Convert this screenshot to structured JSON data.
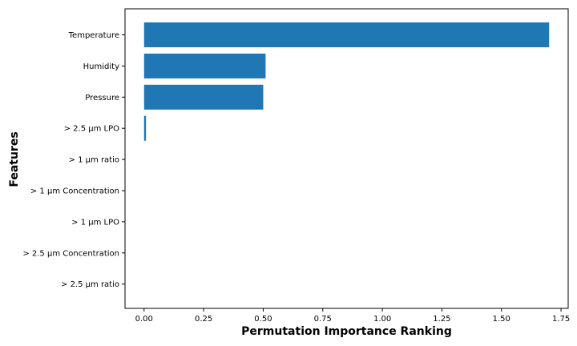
{
  "chart_data": {
    "type": "bar",
    "orientation": "horizontal",
    "title": "",
    "xlabel": "Permutation Importance Ranking",
    "ylabel": "Features",
    "categories": [
      "Temperature",
      "Humidity",
      "Pressure",
      "> 2.5 µm LPO",
      "> 1 µm ratio",
      "> 1 µm Concentration",
      "> 1 µm LPO",
      "> 2.5 µm Concentration",
      "> 2.5 µm ratio"
    ],
    "values": [
      1.7,
      0.51,
      0.5,
      0.008,
      0.0,
      0.0,
      0.0,
      0.0,
      0.0
    ],
    "xlim": [
      -0.08,
      1.78
    ],
    "xticks": [
      0.0,
      0.25,
      0.5,
      0.75,
      1.0,
      1.25,
      1.5,
      1.75
    ],
    "xtick_labels": [
      "0.00",
      "0.25",
      "0.50",
      "0.75",
      "1.00",
      "1.25",
      "1.50",
      "1.75"
    ],
    "bar_color": "#1f77b4",
    "grid": false,
    "legend": "none"
  }
}
